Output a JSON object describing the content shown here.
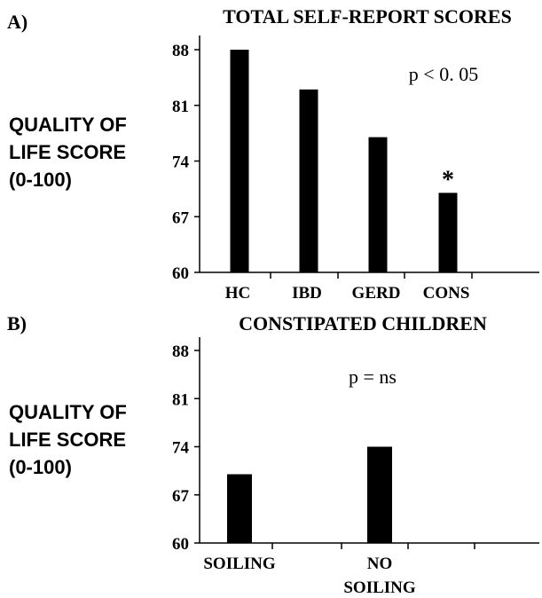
{
  "chart_data": [
    {
      "type": "bar",
      "panel_label": "A)",
      "title": "TOTAL SELF-REPORT SCORES",
      "ylabel_lines": [
        "QUALITY OF",
        "LIFE SCORE",
        "(0-100)"
      ],
      "categories": [
        "HC",
        "IBD",
        "GERD",
        "CONS"
      ],
      "values": [
        88,
        83,
        77,
        70
      ],
      "yticks": [
        "88",
        "81",
        "74",
        "67",
        "60"
      ],
      "ytick_values": [
        88,
        81,
        74,
        67,
        60
      ],
      "ylim": [
        60,
        88
      ],
      "annotation": "p < 0. 05",
      "significance_marker": "*",
      "significance_category": "CONS",
      "bar_color": "#000000"
    },
    {
      "type": "bar",
      "panel_label": "B)",
      "title": "CONSTIPATED CHILDREN",
      "ylabel_lines": [
        "QUALITY OF",
        "LIFE SCORE",
        "(0-100)"
      ],
      "categories": [
        [
          "SOILING"
        ],
        [
          "NO",
          "SOILING"
        ]
      ],
      "values": [
        70,
        74
      ],
      "yticks": [
        "88",
        "81",
        "74",
        "67",
        "60"
      ],
      "ytick_values": [
        88,
        81,
        74,
        67,
        60
      ],
      "ylim": [
        60,
        88
      ],
      "annotation": "p = ns",
      "bar_color": "#000000"
    }
  ]
}
